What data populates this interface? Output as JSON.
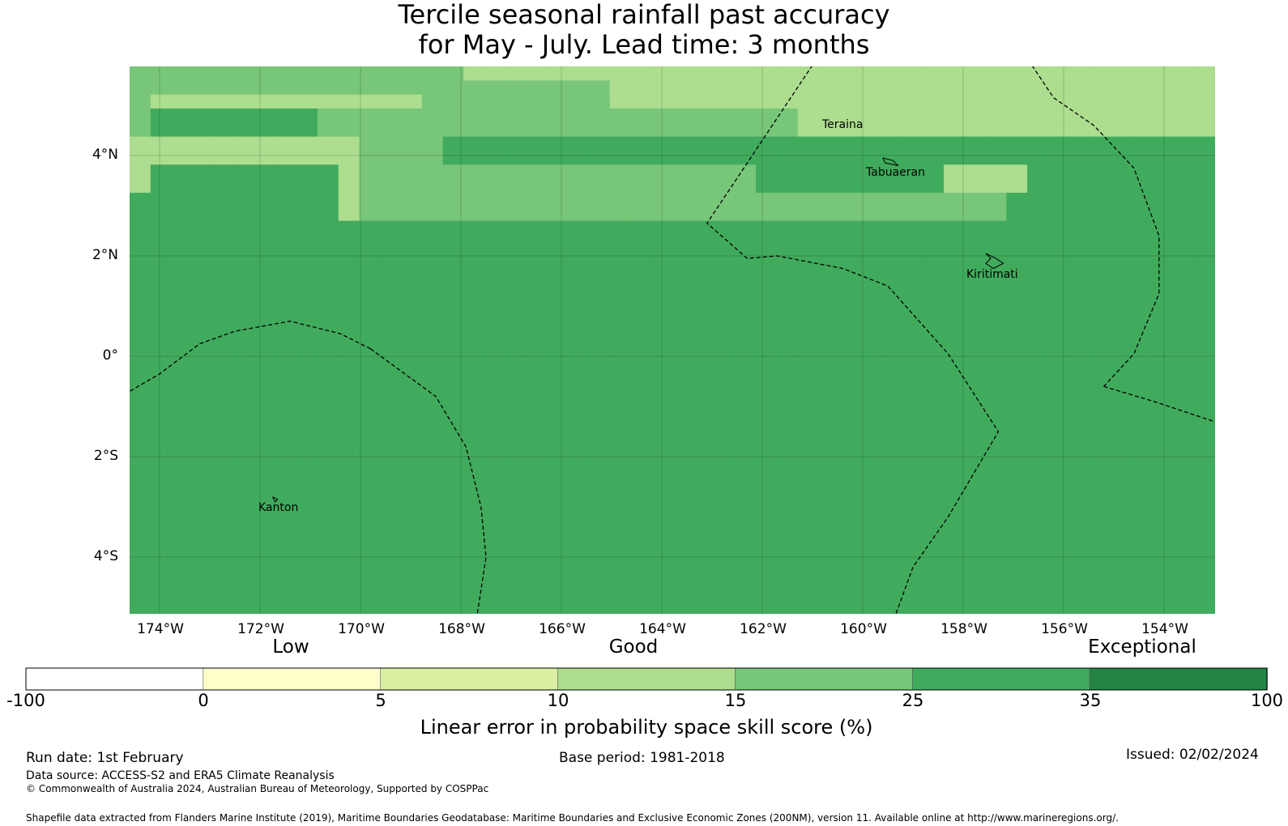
{
  "title": {
    "line1": "Tercile seasonal rainfall past accuracy",
    "line2": "for May - July. Lead time: 3 months"
  },
  "map": {
    "lat_labels": [
      "4°N",
      "2°N",
      "0°",
      "2°S",
      "4°S"
    ],
    "lon_labels": [
      "174°W",
      "172°W",
      "170°W",
      "168°W",
      "166°W",
      "164°W",
      "162°W",
      "160°W",
      "158°W",
      "156°W",
      "154°W"
    ],
    "places": [
      "Teraina",
      "Tabuaeran",
      "Kiritimati",
      "Kanton"
    ],
    "skill_grid": [
      "4444444444444444333333333333333333333333333333333333",
      "4444444444444444444444433333333333333333333333333333",
      "4333333333333344444444433333333333333333333333333333",
      "4555555554444444444444444444444433333333333333333333",
      "4555555554444444444444444444444433333333333333333333",
      "3333333333344445555555555555555555555555555555555555",
      "3333333333344445555555555555555555555555555555555555",
      "3555555555344444444444444444445555555553333555555555",
      "3555555555344444444444444444445555555553333555555555",
      "5555555555344444444444444444444444444444445555555555",
      "5555555555344444444444444444444444444444445555555555",
      "5555555555555555555555555555555555555555555555555555",
      "5555555555555555555555555555555555555555555555555555",
      "5555555555555555555555555555555555555555555555555555",
      "5555555555555555555555555555555555555555555555555555",
      "5555555555555555555555555555555555555555555555555555",
      "5555555555555555555555555555555555555555555555555555",
      "5555555555555555555555555555555555555555555555555555",
      "5555555555555555555555555555555555555555555555555555",
      "5555555555555555555555555555555555555555555555555555",
      "5555555555555555555555555555555555555555555555555555",
      "5555555555555555555555555555555555555555555555555555",
      "5555555555555555555555555555555555555555555555555555",
      "5555555555555555555555555555555555555555555555555555",
      "5555555555555555555555555555555555555555555555555555",
      "5555555555555555555555555555555555555555555555555555",
      "5555555555555555555555555555555555555555555555555555",
      "5555555555555555555555555555555555555555555555555555",
      "5555555555555555555555555555555555555555555555555555",
      "5555555555555555555555555555555555555555555555555555",
      "5555555555555555555555555555555555555555555555555555",
      "5555555555555555555555555555555555555555555555555555",
      "5555555555555555555555555555555555555555555555555555",
      "5555555555555555555555555555555555555555555555555555",
      "5555555555555555555555555555555555555555555555555555",
      "5555555555555555555555555555555555555555555555555555",
      "5555555555555555555555555555555555555555555555555555",
      "5555555555555555555555555555555555555555555555555555",
      "5555555555555555555555555555555555555555555555555555"
    ],
    "eez_lines": [
      [
        [
          -169.8,
          0.15
        ],
        [
          -170.4,
          0.45
        ],
        [
          -171.4,
          0.7
        ],
        [
          -172.5,
          0.5
        ],
        [
          -173.2,
          0.25
        ],
        [
          -174.0,
          -0.35
        ],
        [
          -175.2,
          -1.05
        ]
      ],
      [
        [
          -169.8,
          0.15
        ],
        [
          -168.5,
          -0.8
        ],
        [
          -167.9,
          -1.8
        ],
        [
          -167.6,
          -3.0
        ],
        [
          -167.5,
          -4.0
        ],
        [
          -167.7,
          -5.3
        ]
      ],
      [
        [
          -161.0,
          5.8
        ],
        [
          -163.1,
          2.65
        ],
        [
          -162.3,
          1.95
        ],
        [
          -161.7,
          2.0
        ],
        [
          -160.4,
          1.75
        ],
        [
          -159.5,
          1.4
        ],
        [
          -158.3,
          0.05
        ],
        [
          -157.3,
          -1.5
        ],
        [
          -158.3,
          -3.2
        ],
        [
          -159.0,
          -4.2
        ],
        [
          -159.4,
          -5.3
        ]
      ],
      [
        [
          -156.7,
          5.9
        ],
        [
          -156.2,
          5.15
        ],
        [
          -155.4,
          4.6
        ],
        [
          -154.6,
          3.75
        ],
        [
          -154.1,
          2.4
        ],
        [
          -154.1,
          1.25
        ],
        [
          -154.6,
          0.05
        ],
        [
          -155.2,
          -0.6
        ]
      ],
      [
        [
          -155.2,
          -0.6
        ],
        [
          -154.2,
          -0.9
        ],
        [
          -153.0,
          -1.3
        ]
      ]
    ],
    "islands": [
      [
        [
          -159.6,
          3.95
        ],
        [
          -159.4,
          3.9
        ],
        [
          -159.3,
          3.8
        ],
        [
          -159.55,
          3.85
        ],
        [
          -159.6,
          3.95
        ]
      ],
      [
        [
          -157.55,
          2.05
        ],
        [
          -157.35,
          1.95
        ],
        [
          -157.2,
          1.85
        ],
        [
          -157.4,
          1.75
        ],
        [
          -157.55,
          1.85
        ],
        [
          -157.45,
          1.95
        ],
        [
          -157.55,
          2.05
        ]
      ],
      [
        [
          -171.75,
          -2.8
        ],
        [
          -171.65,
          -2.85
        ],
        [
          -171.7,
          -2.9
        ],
        [
          -171.75,
          -2.8
        ]
      ]
    ]
  },
  "colorbar": {
    "colors": [
      "#ffffff",
      "#ffffcc",
      "#d9f0a3",
      "#addd8e",
      "#78c679",
      "#41ab5d",
      "#238443"
    ],
    "ticks": [
      "-100",
      "0",
      "5",
      "10",
      "15",
      "25",
      "35",
      "100"
    ],
    "category_labels": [
      "Low",
      "Good",
      "Exceptional"
    ],
    "title": "Linear error in probability space skill score (%)"
  },
  "footer": {
    "run_date": "Run date: 1st February",
    "base_period": "Base period: 1981-2018",
    "issued": "Issued: 02/02/2024",
    "data_source": "Data source: ACCESS-S2 and ERA5 Climate Reanalysis",
    "copyright": "© Commonwealth of Australia 2024, Australian Bureau of Meteorology, Supported by COSPPac",
    "shapefile": "Shapefile data extracted from Flanders Marine Institute (2019), Maritime Boundaries Geodatabase: Maritime Boundaries and Exclusive Economic Zones (200NM), version 11. Available online at http://www.marineregions.org/."
  }
}
